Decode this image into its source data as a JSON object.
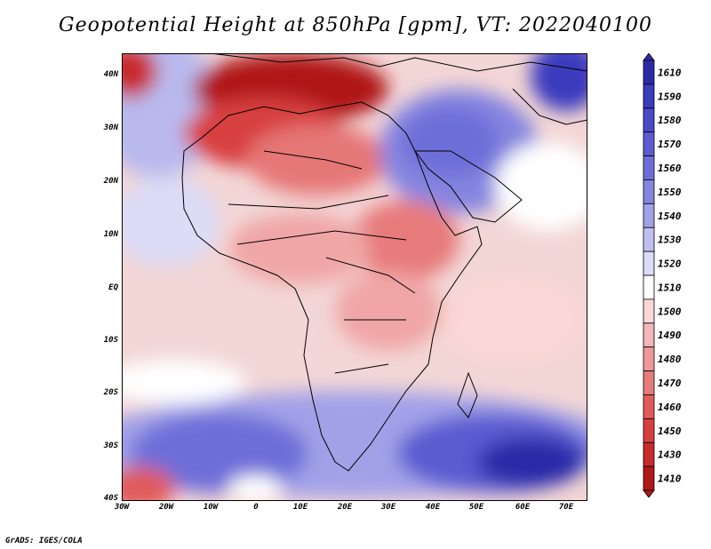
{
  "title": "Geopotential Height at 850hPa [gpm], VT: 2022040100",
  "credit": "GrADS: IGES/COLA",
  "lat_labels": [
    "40N",
    "30N",
    "20N",
    "10N",
    "EQ",
    "10S",
    "20S",
    "30S",
    "40S"
  ],
  "lon_labels": [
    "30W",
    "20W",
    "10W",
    "0",
    "10E",
    "20E",
    "30E",
    "40E",
    "50E",
    "60E",
    "70E"
  ],
  "colorbar": {
    "labels": [
      "1610",
      "1590",
      "1580",
      "1570",
      "1560",
      "1550",
      "1540",
      "1530",
      "1520",
      "1510",
      "1500",
      "1490",
      "1480",
      "1470",
      "1460",
      "1450",
      "1430",
      "1410"
    ],
    "colors": [
      "#2a2aa8",
      "#3b3bbd",
      "#4a4ac8",
      "#5c5cd1",
      "#6e6ed9",
      "#8585e0",
      "#a1a1e8",
      "#c0c0f0",
      "#dcdcf8",
      "#ffffff",
      "#fbd6d6",
      "#f4b6b6",
      "#ee9898",
      "#e77a7a",
      "#e05c5c",
      "#d84040",
      "#c92a2a",
      "#b01818"
    ]
  }
}
